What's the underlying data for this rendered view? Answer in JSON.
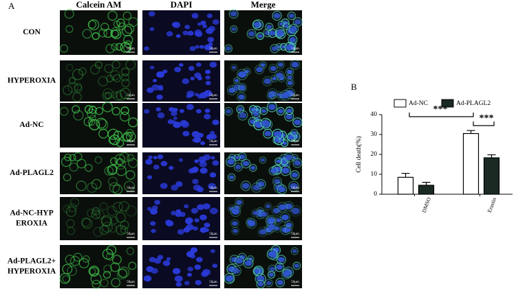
{
  "panel_a": {
    "label": "A",
    "columns": [
      "Calcein AM",
      "DAPI",
      "Merge"
    ],
    "rows": [
      [
        "CON"
      ],
      [
        "HYPEROXIA"
      ],
      [
        "Ad-NC"
      ],
      [
        "Ad-PLAGL2"
      ],
      [
        "Ad-NC-HYP",
        "EROXIA"
      ],
      [
        "Ad-PLAGL2+",
        "HYPEROXIA"
      ]
    ],
    "scale_bar": "50μm"
  },
  "chart_data": {
    "type": "bar",
    "label": "B",
    "y_label": "Cell death(%)",
    "categories": [
      "DMSO",
      "Erastin"
    ],
    "series": [
      {
        "name": "Ad-NC",
        "color": "#ffffff",
        "values": [
          8.5,
          30.5
        ],
        "errors": [
          2,
          1.5
        ]
      },
      {
        "name": "Ad-PLAGL2",
        "color": "#1b2a22",
        "values": [
          4.5,
          18.3
        ],
        "errors": [
          1.5,
          1.5
        ]
      }
    ],
    "ylim": [
      0,
      40
    ],
    "yticks": [
      0,
      10,
      20,
      30,
      40
    ],
    "annotations": [
      "***",
      "***"
    ]
  }
}
